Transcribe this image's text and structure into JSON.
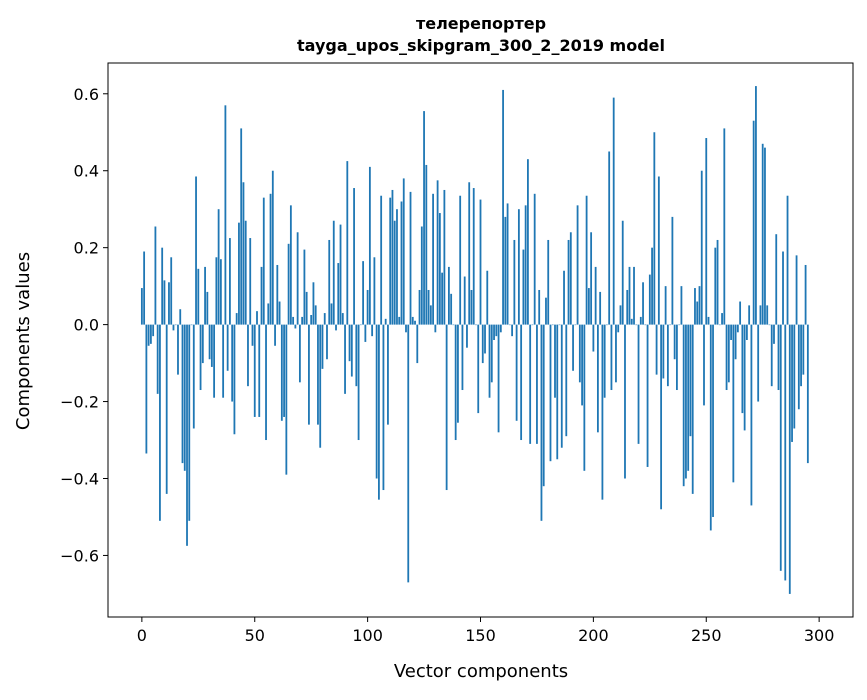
{
  "chart_data": {
    "type": "bar",
    "title": "телерепортер",
    "subtitle": "tayga_upos_skipgram_300_2_2019 model",
    "xlabel": "Vector components",
    "ylabel": "Components values",
    "xlim": [
      -15,
      315
    ],
    "ylim": [
      -0.76,
      0.68
    ],
    "xticks": [
      0,
      50,
      100,
      150,
      200,
      250,
      300
    ],
    "xtick_labels": [
      "0",
      "50",
      "100",
      "150",
      "200",
      "250",
      "300"
    ],
    "yticks": [
      -0.6,
      -0.4,
      -0.2,
      0.0,
      0.2,
      0.4,
      0.6
    ],
    "ytick_labels": [
      "−0.6",
      "−0.4",
      "−0.2",
      "0.0",
      "0.2",
      "0.4",
      "0.6"
    ],
    "grid": false,
    "bar_color": "#1f77b4",
    "values": [
      0.095,
      0.19,
      -0.335,
      -0.055,
      -0.05,
      -0.03,
      0.255,
      -0.18,
      -0.51,
      0.2,
      0.115,
      -0.44,
      0.11,
      0.175,
      -0.015,
      0.0,
      -0.13,
      0.04,
      -0.36,
      -0.38,
      -0.575,
      -0.51,
      0.0,
      -0.27,
      0.385,
      0.145,
      -0.17,
      -0.1,
      0.15,
      0.085,
      -0.09,
      -0.11,
      -0.19,
      0.175,
      0.3,
      0.17,
      -0.19,
      0.57,
      -0.12,
      0.225,
      -0.2,
      -0.285,
      0.03,
      0.265,
      0.51,
      0.37,
      0.27,
      -0.16,
      0.225,
      -0.055,
      -0.24,
      0.035,
      -0.24,
      0.15,
      0.33,
      -0.3,
      0.055,
      0.34,
      0.4,
      -0.055,
      0.155,
      0.06,
      -0.25,
      -0.24,
      -0.39,
      0.21,
      0.31,
      0.02,
      -0.01,
      0.24,
      -0.15,
      0.02,
      0.195,
      0.085,
      -0.26,
      0.025,
      0.11,
      0.05,
      -0.26,
      -0.32,
      -0.115,
      0.03,
      -0.09,
      0.22,
      0.055,
      0.27,
      -0.015,
      0.16,
      0.26,
      0.03,
      -0.18,
      0.425,
      -0.095,
      -0.135,
      0.355,
      -0.16,
      -0.3,
      0.0,
      0.165,
      -0.045,
      0.09,
      0.41,
      -0.03,
      0.175,
      -0.4,
      -0.455,
      0.335,
      -0.43,
      0.015,
      -0.26,
      0.33,
      0.35,
      0.27,
      0.3,
      0.02,
      0.32,
      0.38,
      -0.02,
      -0.67,
      0.345,
      0.02,
      0.01,
      -0.1,
      0.09,
      0.255,
      0.555,
      0.415,
      0.09,
      0.05,
      0.34,
      -0.02,
      0.375,
      0.29,
      0.135,
      0.35,
      -0.43,
      0.15,
      0.08,
      0.0,
      -0.3,
      -0.255,
      0.335,
      -0.17,
      0.125,
      -0.06,
      0.37,
      0.09,
      0.355,
      0.0,
      -0.23,
      0.325,
      -0.1,
      -0.075,
      0.14,
      -0.19,
      -0.15,
      -0.04,
      -0.03,
      -0.28,
      -0.02,
      0.61,
      0.28,
      0.315,
      0.0,
      -0.03,
      0.22,
      -0.25,
      0.3,
      -0.3,
      0.195,
      0.31,
      0.43,
      -0.31,
      0.0,
      0.34,
      -0.31,
      0.09,
      -0.51,
      -0.42,
      0.07,
      0.22,
      -0.355,
      0.0,
      -0.19,
      -0.35,
      0.0,
      -0.32,
      0.14,
      -0.29,
      0.22,
      0.24,
      -0.12,
      0.0,
      0.31,
      -0.15,
      -0.21,
      -0.38,
      0.335,
      0.095,
      0.24,
      -0.07,
      0.15,
      -0.28,
      0.085,
      -0.455,
      -0.19,
      0.0,
      0.45,
      -0.17,
      0.59,
      -0.15,
      -0.02,
      0.05,
      0.27,
      -0.4,
      0.09,
      0.15,
      0.015,
      0.15,
      0.0,
      -0.31,
      0.02,
      0.11,
      0.0,
      -0.37,
      0.13,
      0.2,
      0.5,
      -0.13,
      0.385,
      -0.48,
      -0.14,
      0.1,
      -0.16,
      0.0,
      0.28,
      -0.09,
      -0.17,
      0.0,
      0.1,
      -0.42,
      -0.4,
      -0.38,
      -0.29,
      -0.44,
      0.095,
      0.06,
      0.1,
      0.4,
      -0.21,
      0.485,
      0.02,
      -0.535,
      -0.5,
      0.2,
      0.22,
      0.0,
      0.03,
      0.51,
      -0.17,
      -0.15,
      -0.04,
      -0.41,
      -0.09,
      -0.02,
      0.06,
      -0.23,
      -0.275,
      -0.04,
      0.05,
      -0.47,
      0.53,
      0.62,
      -0.2,
      0.05,
      0.47,
      0.46,
      0.05,
      0.0,
      -0.16,
      -0.05,
      0.235,
      -0.17,
      -0.64,
      0.19,
      -0.665,
      0.335,
      -0.7,
      -0.305,
      -0.27,
      0.18,
      -0.22,
      -0.16,
      -0.13,
      0.155,
      -0.36
    ]
  }
}
